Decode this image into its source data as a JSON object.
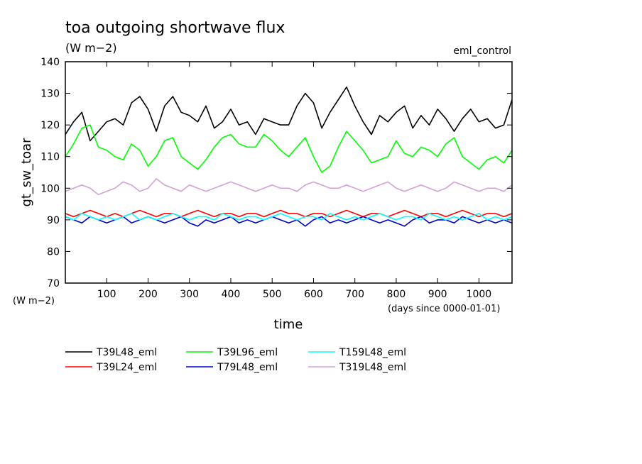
{
  "chart_data": {
    "type": "line",
    "title": "toa outgoing shortwave flux",
    "subtitle": "(W m−2)",
    "experiment_label": "eml_control",
    "ylabel": "gt_sw_toar",
    "y_unit_label": "(W m−2)",
    "xlabel": "time",
    "x_unit_label": "(days since 0000-01-01)",
    "xlim": [
      0,
      1080
    ],
    "ylim": [
      70,
      140
    ],
    "x_ticks": [
      100,
      200,
      300,
      400,
      500,
      600,
      700,
      800,
      900,
      1000
    ],
    "y_ticks": [
      70,
      80,
      90,
      100,
      110,
      120,
      130,
      140
    ],
    "grid": false,
    "legend_placement": "bottom",
    "series": [
      {
        "name": "T39L48_eml",
        "color": "#000000",
        "x": [
          0,
          20,
          40,
          60,
          80,
          100,
          120,
          140,
          160,
          180,
          200,
          220,
          240,
          260,
          280,
          300,
          320,
          340,
          360,
          380,
          400,
          420,
          440,
          460,
          480,
          500,
          520,
          540,
          560,
          580,
          600,
          620,
          640,
          660,
          680,
          700,
          720,
          740,
          760,
          780,
          800,
          820,
          840,
          860,
          880,
          900,
          920,
          940,
          960,
          980,
          1000,
          1020,
          1040,
          1060,
          1080
        ],
        "values": [
          117,
          121,
          124,
          115,
          118,
          121,
          122,
          120,
          127,
          129,
          125,
          118,
          126,
          129,
          124,
          123,
          121,
          126,
          119,
          121,
          125,
          120,
          121,
          117,
          122,
          121,
          120,
          120,
          126,
          130,
          127,
          119,
          124,
          128,
          132,
          126,
          121,
          117,
          123,
          121,
          124,
          126,
          119,
          123,
          120,
          125,
          122,
          118,
          122,
          125,
          121,
          122,
          119,
          120,
          128
        ]
      },
      {
        "name": "T39L96_eml",
        "color": "#00ff00",
        "x": [
          0,
          20,
          40,
          60,
          80,
          100,
          120,
          140,
          160,
          180,
          200,
          220,
          240,
          260,
          280,
          300,
          320,
          340,
          360,
          380,
          400,
          420,
          440,
          460,
          480,
          500,
          520,
          540,
          560,
          580,
          600,
          620,
          640,
          660,
          680,
          700,
          720,
          740,
          760,
          780,
          800,
          820,
          840,
          860,
          880,
          900,
          920,
          940,
          960,
          980,
          1000,
          1020,
          1040,
          1060,
          1080
        ],
        "values": [
          110,
          114,
          119,
          120,
          113,
          112,
          110,
          109,
          114,
          112,
          107,
          110,
          115,
          116,
          110,
          108,
          106,
          109,
          113,
          116,
          117,
          114,
          113,
          113,
          117,
          115,
          112,
          110,
          113,
          116,
          110,
          105,
          107,
          113,
          118,
          115,
          112,
          108,
          109,
          110,
          115,
          111,
          110,
          113,
          112,
          110,
          114,
          116,
          110,
          108,
          106,
          109,
          110,
          108,
          112
        ]
      },
      {
        "name": "T319L48_eml",
        "color": "#d4a0d8",
        "x": [
          0,
          20,
          40,
          60,
          80,
          100,
          120,
          140,
          160,
          180,
          200,
          220,
          240,
          260,
          280,
          300,
          320,
          340,
          360,
          380,
          400,
          420,
          440,
          460,
          480,
          500,
          520,
          540,
          560,
          580,
          600,
          620,
          640,
          660,
          680,
          700,
          720,
          740,
          760,
          780,
          800,
          820,
          840,
          860,
          880,
          900,
          920,
          940,
          960,
          980,
          1000,
          1020,
          1040,
          1060,
          1080
        ],
        "values": [
          99,
          100,
          101,
          100,
          98,
          99,
          100,
          102,
          101,
          99,
          100,
          103,
          101,
          100,
          99,
          101,
          100,
          99,
          100,
          101,
          102,
          101,
          100,
          99,
          100,
          101,
          100,
          100,
          99,
          101,
          102,
          101,
          100,
          100,
          101,
          100,
          99,
          100,
          101,
          102,
          100,
          99,
          100,
          101,
          100,
          99,
          100,
          102,
          101,
          100,
          99,
          100,
          100,
          99,
          101
        ]
      },
      {
        "name": "T39L24_eml",
        "color": "#ff0000",
        "x": [
          0,
          20,
          40,
          60,
          80,
          100,
          120,
          140,
          160,
          180,
          200,
          220,
          240,
          260,
          280,
          300,
          320,
          340,
          360,
          380,
          400,
          420,
          440,
          460,
          480,
          500,
          520,
          540,
          560,
          580,
          600,
          620,
          640,
          660,
          680,
          700,
          720,
          740,
          760,
          780,
          800,
          820,
          840,
          860,
          880,
          900,
          920,
          940,
          960,
          980,
          1000,
          1020,
          1040,
          1060,
          1080
        ],
        "values": [
          92,
          91,
          92,
          93,
          92,
          91,
          92,
          91,
          92,
          93,
          92,
          91,
          92,
          92,
          91,
          92,
          93,
          92,
          91,
          92,
          92,
          91,
          92,
          92,
          91,
          92,
          93,
          92,
          92,
          91,
          92,
          92,
          91,
          92,
          93,
          92,
          91,
          92,
          92,
          91,
          92,
          93,
          92,
          91,
          92,
          92,
          91,
          92,
          93,
          92,
          91,
          92,
          92,
          91,
          92
        ]
      },
      {
        "name": "T79L48_eml",
        "color": "#0000cc",
        "x": [
          0,
          20,
          40,
          60,
          80,
          100,
          120,
          140,
          160,
          180,
          200,
          220,
          240,
          260,
          280,
          300,
          320,
          340,
          360,
          380,
          400,
          420,
          440,
          460,
          480,
          500,
          520,
          540,
          560,
          580,
          600,
          620,
          640,
          660,
          680,
          700,
          720,
          740,
          760,
          780,
          800,
          820,
          840,
          860,
          880,
          900,
          920,
          940,
          960,
          980,
          1000,
          1020,
          1040,
          1060,
          1080
        ],
        "values": [
          91,
          90,
          89,
          91,
          90,
          89,
          90,
          91,
          89,
          90,
          91,
          90,
          89,
          90,
          91,
          89,
          88,
          90,
          89,
          90,
          91,
          89,
          90,
          89,
          90,
          91,
          90,
          89,
          90,
          88,
          90,
          91,
          89,
          90,
          89,
          90,
          91,
          90,
          89,
          90,
          89,
          88,
          90,
          91,
          89,
          90,
          90,
          89,
          91,
          90,
          89,
          90,
          89,
          90,
          89
        ]
      },
      {
        "name": "T159L48_eml",
        "color": "#00ffff",
        "x": [
          0,
          20,
          40,
          60,
          80,
          100,
          120,
          140,
          160,
          180,
          200,
          220,
          240,
          260,
          280,
          300,
          320,
          340,
          360,
          380,
          400,
          420,
          440,
          460,
          480,
          500,
          520,
          540,
          560,
          580,
          600,
          620,
          640,
          660,
          680,
          700,
          720,
          740,
          760,
          780,
          800,
          820,
          840,
          860,
          880,
          900,
          920,
          940,
          960,
          980,
          1000,
          1020,
          1040,
          1060,
          1080
        ],
        "values": [
          91,
          90,
          92,
          91,
          90,
          91,
          90,
          91,
          92,
          90,
          91,
          90,
          91,
          92,
          91,
          90,
          91,
          91,
          90,
          92,
          91,
          90,
          91,
          91,
          90,
          91,
          92,
          91,
          90,
          91,
          91,
          90,
          92,
          91,
          90,
          91,
          90,
          91,
          92,
          91,
          90,
          91,
          91,
          90,
          92,
          91,
          90,
          91,
          90,
          91,
          92,
          90,
          91,
          90,
          91
        ]
      }
    ]
  }
}
